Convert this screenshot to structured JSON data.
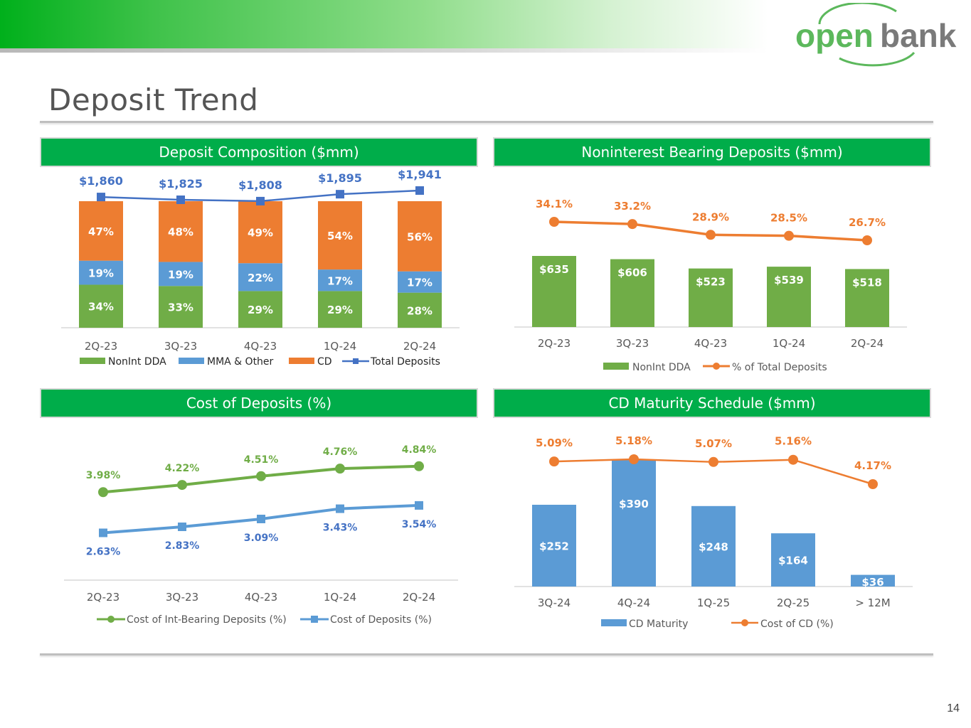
{
  "page": {
    "title": "Deposit Trend",
    "page_number": "14"
  },
  "logo": {
    "text_open": "open",
    "text_bank": "bank",
    "color_open": "#5cb85c",
    "color_bank": "#7a7a7a"
  },
  "colors": {
    "green": "#70ad47",
    "blue": "#5b9bd5",
    "orange": "#ed7d31",
    "darkblue": "#4472c4",
    "header_green": "#00ad4a"
  },
  "chart_data": [
    {
      "id": "deposit_composition",
      "type": "bar",
      "stacked": true,
      "title": "Deposit Composition ($mm)",
      "categories": [
        "2Q-23",
        "3Q-23",
        "4Q-23",
        "1Q-24",
        "2Q-24"
      ],
      "series": [
        {
          "name": "NonInt DDA",
          "values": [
            34,
            33,
            29,
            29,
            28
          ],
          "labels": [
            "34%",
            "33%",
            "29%",
            "29%",
            "28%"
          ]
        },
        {
          "name": "MMA & Other",
          "values": [
            19,
            19,
            22,
            17,
            17
          ],
          "labels": [
            "19%",
            "19%",
            "22%",
            "17%",
            "17%"
          ]
        },
        {
          "name": "CD",
          "values": [
            47,
            48,
            49,
            54,
            56
          ],
          "labels": [
            "47%",
            "48%",
            "49%",
            "54%",
            "56%"
          ]
        }
      ],
      "line": {
        "name": "Total Deposits",
        "values": [
          1860,
          1825,
          1808,
          1895,
          1941
        ],
        "labels": [
          "$1,860",
          "$1,825",
          "$1,808",
          "$1,895",
          "$1,941"
        ]
      },
      "legend": [
        "NonInt DDA",
        "MMA & Other",
        "CD",
        "Total Deposits"
      ]
    },
    {
      "id": "nonint_deposits",
      "type": "bar",
      "title": "Noninterest Bearing Deposits ($mm)",
      "categories": [
        "2Q-23",
        "3Q-23",
        "4Q-23",
        "1Q-24",
        "2Q-24"
      ],
      "series": [
        {
          "name": "NonInt DDA",
          "values": [
            635,
            606,
            523,
            539,
            518
          ],
          "labels": [
            "$635",
            "$606",
            "$523",
            "$539",
            "$518"
          ]
        }
      ],
      "line": {
        "name": "% of Total Deposits",
        "values": [
          34.1,
          33.2,
          28.9,
          28.5,
          26.7
        ],
        "labels": [
          "34.1%",
          "33.2%",
          "28.9%",
          "28.5%",
          "26.7%"
        ]
      },
      "legend": [
        "NonInt DDA",
        "% of Total Deposits"
      ]
    },
    {
      "id": "cost_of_deposits",
      "type": "line",
      "title": "Cost of Deposits (%)",
      "categories": [
        "2Q-23",
        "3Q-23",
        "4Q-23",
        "1Q-24",
        "2Q-24"
      ],
      "series": [
        {
          "name": "Cost of Int-Bearing Deposits (%)",
          "values": [
            3.98,
            4.22,
            4.51,
            4.76,
            4.84
          ],
          "labels": [
            "3.98%",
            "4.22%",
            "4.51%",
            "4.76%",
            "4.84%"
          ]
        },
        {
          "name": "Cost of Deposits (%)",
          "values": [
            2.63,
            2.83,
            3.09,
            3.43,
            3.54
          ],
          "labels": [
            "2.63%",
            "2.83%",
            "3.09%",
            "3.43%",
            "3.54%"
          ]
        }
      ],
      "legend": [
        "Cost of Int-Bearing Deposits (%)",
        "Cost of Deposits (%)"
      ]
    },
    {
      "id": "cd_maturity",
      "type": "bar",
      "title": "CD Maturity Schedule ($mm)",
      "categories": [
        "3Q-24",
        "4Q-24",
        "1Q-25",
        "2Q-25",
        "> 12M"
      ],
      "series": [
        {
          "name": "CD Maturity",
          "values": [
            252,
            390,
            248,
            164,
            36
          ],
          "labels": [
            "$252",
            "$390",
            "$248",
            "$164",
            "$36"
          ]
        }
      ],
      "line": {
        "name": "Cost of CD (%)",
        "values": [
          5.09,
          5.18,
          5.07,
          5.16,
          4.17
        ],
        "labels": [
          "5.09%",
          "5.18%",
          "5.07%",
          "5.16%",
          "4.17%"
        ]
      },
      "legend": [
        "CD Maturity",
        "Cost of CD (%)"
      ]
    }
  ]
}
